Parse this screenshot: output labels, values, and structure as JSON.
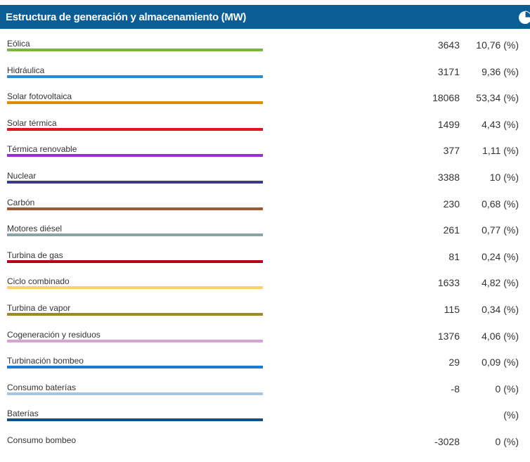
{
  "header": {
    "title": "Estructura de generación y almacenamiento (MW)",
    "icon": "pie-chart-icon",
    "background": "#0b5e95"
  },
  "rows": [
    {
      "label": "Eólica",
      "value": "3643",
      "percent": "10,76 (%)",
      "color": "#7cb342"
    },
    {
      "label": "Hidráulica",
      "value": "3171",
      "percent": "9,36 (%)",
      "color": "#2a8dcf"
    },
    {
      "label": "Solar fotovoltaica",
      "value": "18068",
      "percent": "53,34 (%)",
      "color": "#e08a00"
    },
    {
      "label": "Solar térmica",
      "value": "1499",
      "percent": "4,43 (%)",
      "color": "#e3141e"
    },
    {
      "label": "Térmica renovable",
      "value": "377",
      "percent": "1,11 (%)",
      "color": "#9a30d0"
    },
    {
      "label": "Nuclear",
      "value": "3388",
      "percent": "10 (%)",
      "color": "#3a3a8a"
    },
    {
      "label": "Carbón",
      "value": "230",
      "percent": "0,68 (%)",
      "color": "#a0583a"
    },
    {
      "label": "Motores diésel",
      "value": "261",
      "percent": "0,77 (%)",
      "color": "#8aa3a3"
    },
    {
      "label": "Turbina de gas",
      "value": "81",
      "percent": "0,24 (%)",
      "color": "#b0001a"
    },
    {
      "label": "Ciclo combinado",
      "value": "1633",
      "percent": "4,82 (%)",
      "color": "#f8d26a"
    },
    {
      "label": "Turbina de vapor",
      "value": "115",
      "percent": "0,34 (%)",
      "color": "#9a8a2a"
    },
    {
      "label": "Cogeneración y residuos",
      "value": "1376",
      "percent": "4,06 (%)",
      "color": "#d4a4d4"
    },
    {
      "label": "Turbinación bombeo",
      "value": "29",
      "percent": "0,09 (%)",
      "color": "#1a7ad4"
    },
    {
      "label": "Consumo baterías",
      "value": "-8",
      "percent": "0 (%)",
      "color": "#a4c6e0"
    },
    {
      "label": "Baterías",
      "value": "",
      "percent": "(%)",
      "color": "#14507e"
    },
    {
      "label": "Consumo bombeo",
      "value": "-3028",
      "percent": "0 (%)",
      "color": ""
    }
  ]
}
